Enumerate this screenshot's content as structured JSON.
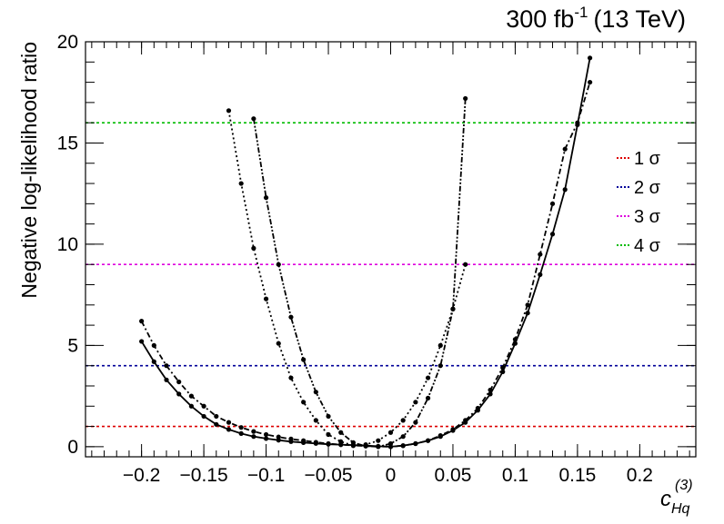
{
  "header": {
    "lumi_value": "300 fb",
    "lumi_exponent": "-1",
    "energy": "(13 TeV)"
  },
  "axes": {
    "ylabel": "Negative log-likelihood ratio",
    "xlabel_main": "c",
    "xlabel_sub": "Hq",
    "xlabel_sup": "(3)"
  },
  "legend": {
    "placement": "right",
    "items": [
      {
        "label": "1 σ",
        "color": "#dd0000",
        "value": 1
      },
      {
        "label": "2 σ",
        "color": "#000099",
        "value": 4
      },
      {
        "label": "3 σ",
        "color": "#dd00dd",
        "value": 9
      },
      {
        "label": "4 σ",
        "color": "#00bb00",
        "value": 16
      }
    ]
  },
  "chart_data": {
    "type": "line",
    "xlim": [
      -0.245,
      0.245
    ],
    "ylim": [
      -0.5,
      20
    ],
    "xticks": [
      -0.2,
      -0.15,
      -0.1,
      -0.05,
      0,
      0.05,
      0.1,
      0.15,
      0.2
    ],
    "xtick_labels": [
      "−0.2",
      "−0.15",
      "−0.1",
      "−0.05",
      "0",
      "0.05",
      "0.1",
      "0.15",
      "0.2"
    ],
    "yticks": [
      0,
      5,
      10,
      15,
      20
    ],
    "ytick_labels": [
      "0",
      "5",
      "10",
      "15",
      "20"
    ],
    "reference_lines": [
      1,
      4,
      9,
      16
    ],
    "series": [
      {
        "style": "solid",
        "curve": {
          "center": 0.0,
          "a": 45,
          "b": 220
        },
        "x": [
          -0.2,
          -0.19,
          -0.18,
          -0.17,
          -0.16,
          -0.15,
          -0.14,
          -0.13,
          -0.12,
          -0.11,
          -0.1,
          -0.09,
          -0.08,
          -0.07,
          -0.06,
          -0.05,
          -0.04,
          -0.03,
          -0.02,
          -0.01,
          0.0,
          0.01,
          0.02,
          0.03,
          0.04,
          0.05,
          0.06,
          0.07,
          0.08,
          0.09,
          0.1,
          0.11,
          0.12,
          0.13,
          0.14,
          0.15,
          0.16
        ],
        "y": [
          5.2,
          4.2,
          3.3,
          2.6,
          2.0,
          1.5,
          1.1,
          0.85,
          0.65,
          0.5,
          0.4,
          0.32,
          0.25,
          0.2,
          0.16,
          0.12,
          0.1,
          0.08,
          0.05,
          0.02,
          0.0,
          0.05,
          0.15,
          0.3,
          0.5,
          0.8,
          1.2,
          1.8,
          2.6,
          3.7,
          5.1,
          6.6,
          8.5,
          10.5,
          12.7,
          15.9,
          19.2
        ]
      },
      {
        "style": "dashdot",
        "curve": {
          "center": -0.01,
          "a": 35,
          "b": 200
        },
        "x": [
          -0.2,
          -0.19,
          -0.18,
          -0.17,
          -0.16,
          -0.15,
          -0.14,
          -0.13,
          -0.12,
          -0.11,
          -0.1,
          -0.09,
          -0.08,
          -0.07,
          -0.06,
          -0.05,
          -0.04,
          -0.03,
          -0.02,
          -0.01,
          0.0,
          0.01,
          0.02,
          0.03,
          0.04,
          0.05,
          0.06,
          0.07,
          0.08,
          0.09,
          0.1,
          0.11,
          0.12,
          0.13,
          0.14,
          0.15,
          0.16
        ],
        "y": [
          6.2,
          5.0,
          4.0,
          3.2,
          2.5,
          2.0,
          1.5,
          1.2,
          0.95,
          0.75,
          0.6,
          0.48,
          0.38,
          0.3,
          0.22,
          0.15,
          0.1,
          0.06,
          0.03,
          0.01,
          0.0,
          0.05,
          0.15,
          0.3,
          0.55,
          0.85,
          1.3,
          1.9,
          2.8,
          3.9,
          5.3,
          7.0,
          9.5,
          12.0,
          14.7,
          16.0,
          18.0
        ]
      },
      {
        "style": "dotted",
        "curve": {
          "center": -0.03,
          "a": 1400,
          "b": 0
        },
        "x": [
          -0.13,
          -0.12,
          -0.11,
          -0.1,
          -0.09,
          -0.08,
          -0.07,
          -0.06,
          -0.05,
          -0.04,
          -0.03,
          -0.02,
          -0.01,
          0.0,
          0.01,
          0.02,
          0.03,
          0.04,
          0.05,
          0.06
        ],
        "y": [
          16.6,
          13.0,
          9.8,
          7.3,
          5.1,
          3.4,
          2.2,
          1.3,
          0.6,
          0.25,
          0.05,
          0.1,
          0.3,
          0.7,
          1.3,
          2.2,
          3.4,
          5.0,
          6.8,
          9.0
        ]
      },
      {
        "style": "dashdotdot",
        "curve": {
          "center": -0.01,
          "a": 1600,
          "b": 0
        },
        "x": [
          -0.11,
          -0.1,
          -0.09,
          -0.08,
          -0.07,
          -0.06,
          -0.05,
          -0.04,
          -0.03,
          -0.02,
          -0.01,
          0.0,
          0.01,
          0.02,
          0.03,
          0.04,
          0.05,
          0.06
        ],
        "y": [
          16.2,
          12.3,
          9.0,
          6.4,
          4.3,
          2.7,
          1.5,
          0.7,
          0.2,
          0.03,
          0.0,
          0.15,
          0.5,
          1.2,
          2.4,
          4.0,
          6.8,
          17.2
        ]
      }
    ]
  }
}
